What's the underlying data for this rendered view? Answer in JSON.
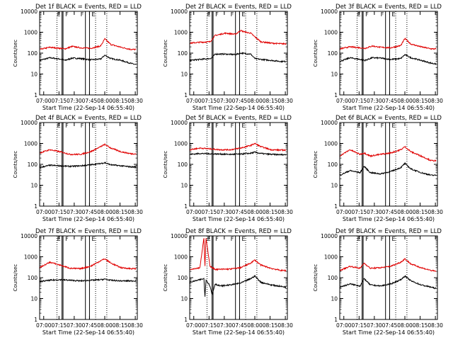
{
  "figure": {
    "xlabel": "Start Time (22-Sep-14 06:55:40)",
    "ylabel": "Counts/sec",
    "xticks": [
      "07:00",
      "07:15",
      "07:30",
      "07:45",
      "08:00",
      "08:15",
      "08:30"
    ],
    "yticks": [
      "1",
      "10",
      "100",
      "1000",
      "10000"
    ],
    "flag_labels": [
      "E",
      "F",
      "F",
      "E"
    ]
  },
  "colors": {
    "events": "#000000",
    "lld": "#e00000"
  },
  "chart_data": [
    {
      "type": "line",
      "title": "Det 1f BLACK = Events, RED = LLD",
      "yscale": "log",
      "ylim": [
        1,
        10000
      ],
      "x": [
        0,
        10,
        20,
        25,
        32,
        40,
        50,
        60,
        64,
        70,
        80,
        90,
        95
      ],
      "series": [
        {
          "color": "events",
          "values": [
            45,
            60,
            52,
            45,
            58,
            55,
            48,
            52,
            80,
            55,
            45,
            32,
            28
          ]
        },
        {
          "color": "lld",
          "values": [
            150,
            190,
            170,
            160,
            210,
            180,
            170,
            220,
            480,
            260,
            190,
            150,
            150
          ]
        }
      ],
      "solid_lines": [
        22,
        23,
        45,
        49
      ],
      "dotted_lines": [
        17,
        55,
        66
      ]
    },
    {
      "type": "line",
      "title": "Det 2f BLACK = Events, RED = LLD",
      "yscale": "log",
      "ylim": [
        1,
        10000
      ],
      "x": [
        0,
        10,
        20,
        22,
        25,
        35,
        45,
        50,
        55,
        60,
        64,
        70,
        80,
        90,
        95
      ],
      "series": [
        {
          "color": "events",
          "values": [
            45,
            50,
            55,
            60,
            90,
            90,
            85,
            100,
            95,
            90,
            55,
            50,
            45,
            40,
            40
          ]
        },
        {
          "color": "lld",
          "values": [
            300,
            330,
            350,
            450,
            700,
            900,
            800,
            1200,
            1000,
            900,
            600,
            350,
            300,
            280,
            280
          ]
        }
      ],
      "solid_lines": [
        22,
        23,
        45,
        49
      ],
      "dotted_lines": [
        17,
        55,
        66
      ]
    },
    {
      "type": "line",
      "title": "Det 3f BLACK = Events, RED = LLD",
      "yscale": "log",
      "ylim": [
        1,
        10000
      ],
      "x": [
        0,
        10,
        20,
        25,
        32,
        40,
        50,
        60,
        64,
        70,
        80,
        90,
        95
      ],
      "series": [
        {
          "color": "events",
          "values": [
            40,
            60,
            50,
            45,
            60,
            58,
            50,
            55,
            85,
            60,
            45,
            33,
            30
          ]
        },
        {
          "color": "lld",
          "values": [
            160,
            200,
            180,
            170,
            220,
            190,
            180,
            230,
            500,
            270,
            200,
            160,
            160
          ]
        }
      ],
      "solid_lines": [
        22,
        23,
        45,
        49
      ],
      "dotted_lines": [
        17,
        55,
        66
      ]
    },
    {
      "type": "line",
      "title": "Det 4f BLACK = Events, RED = LLD",
      "yscale": "log",
      "ylim": [
        1,
        10000
      ],
      "x": [
        0,
        10,
        20,
        30,
        40,
        50,
        60,
        64,
        70,
        80,
        90,
        95
      ],
      "series": [
        {
          "color": "events",
          "values": [
            70,
            90,
            85,
            80,
            85,
            95,
            110,
            120,
            95,
            85,
            75,
            75
          ]
        },
        {
          "color": "lld",
          "values": [
            350,
            500,
            400,
            300,
            300,
            400,
            700,
            900,
            600,
            400,
            320,
            320
          ]
        }
      ],
      "solid_lines": [
        22,
        23,
        45,
        49
      ],
      "dotted_lines": [
        17,
        55,
        66
      ]
    },
    {
      "type": "line",
      "title": "Det 5f BLACK = Events, RED = LLD",
      "yscale": "log",
      "ylim": [
        1,
        10000
      ],
      "x": [
        0,
        10,
        20,
        30,
        40,
        50,
        60,
        64,
        70,
        80,
        90,
        95
      ],
      "series": [
        {
          "color": "events",
          "values": [
            300,
            330,
            320,
            310,
            300,
            310,
            340,
            380,
            330,
            300,
            290,
            290
          ]
        },
        {
          "color": "lld",
          "values": [
            500,
            600,
            550,
            500,
            500,
            600,
            800,
            1000,
            700,
            500,
            480,
            480
          ]
        }
      ],
      "solid_lines": [
        22,
        23,
        45,
        49
      ],
      "dotted_lines": [
        17,
        55,
        66
      ]
    },
    {
      "type": "line",
      "title": "Det 6f BLACK = Events, RED = LLD",
      "yscale": "log",
      "ylim": [
        1,
        10000
      ],
      "x": [
        0,
        10,
        20,
        24,
        30,
        40,
        50,
        60,
        64,
        70,
        80,
        90,
        95
      ],
      "series": [
        {
          "color": "events",
          "values": [
            30,
            50,
            40,
            80,
            40,
            35,
            45,
            70,
            110,
            60,
            40,
            30,
            30
          ]
        },
        {
          "color": "lld",
          "values": [
            250,
            500,
            300,
            350,
            250,
            300,
            350,
            500,
            700,
            400,
            250,
            150,
            150
          ]
        }
      ],
      "solid_lines": [
        22,
        23,
        45,
        49
      ],
      "dotted_lines": [
        17,
        55,
        66
      ]
    },
    {
      "type": "line",
      "title": "Det 7f BLACK = Events, RED = LLD",
      "yscale": "log",
      "ylim": [
        1,
        10000
      ],
      "x": [
        0,
        10,
        20,
        30,
        40,
        50,
        60,
        64,
        70,
        80,
        90,
        95
      ],
      "series": [
        {
          "color": "events",
          "values": [
            65,
            75,
            80,
            75,
            70,
            75,
            80,
            85,
            75,
            70,
            70,
            70
          ]
        },
        {
          "color": "lld",
          "values": [
            300,
            550,
            400,
            280,
            270,
            350,
            650,
            800,
            500,
            300,
            270,
            270
          ]
        }
      ],
      "solid_lines": [
        22,
        23,
        45,
        49
      ],
      "dotted_lines": [
        17,
        55,
        66
      ]
    },
    {
      "type": "line",
      "title": "Det 8f BLACK = Events, RED = LLD",
      "yscale": "log",
      "ylim": [
        1,
        10000
      ],
      "x": [
        0,
        10,
        14,
        15,
        16,
        20,
        22,
        25,
        30,
        40,
        50,
        60,
        64,
        70,
        80,
        90,
        95
      ],
      "series": [
        {
          "color": "events",
          "values": [
            60,
            80,
            90,
            12,
            80,
            40,
            15,
            50,
            40,
            45,
            55,
            90,
            120,
            60,
            45,
            38,
            35
          ]
        },
        {
          "color": "lld",
          "values": [
            250,
            300,
            8000,
            300,
            8000,
            350,
            300,
            250,
            250,
            260,
            300,
            500,
            700,
            400,
            280,
            220,
            220
          ]
        }
      ],
      "solid_lines": [
        22,
        23,
        45,
        49
      ],
      "dotted_lines": [
        17,
        55,
        66
      ]
    },
    {
      "type": "line",
      "title": "Det 9f BLACK = Events, RED = LLD",
      "yscale": "log",
      "ylim": [
        1,
        10000
      ],
      "x": [
        0,
        10,
        20,
        24,
        30,
        40,
        50,
        60,
        64,
        70,
        80,
        90,
        95
      ],
      "series": [
        {
          "color": "events",
          "values": [
            35,
            50,
            40,
            90,
            45,
            40,
            50,
            80,
            120,
            70,
            45,
            35,
            30
          ]
        },
        {
          "color": "lld",
          "values": [
            220,
            350,
            280,
            500,
            280,
            300,
            350,
            550,
            800,
            450,
            300,
            220,
            200
          ]
        }
      ],
      "solid_lines": [
        22,
        23,
        45,
        49
      ],
      "dotted_lines": [
        17,
        55,
        66
      ]
    }
  ]
}
